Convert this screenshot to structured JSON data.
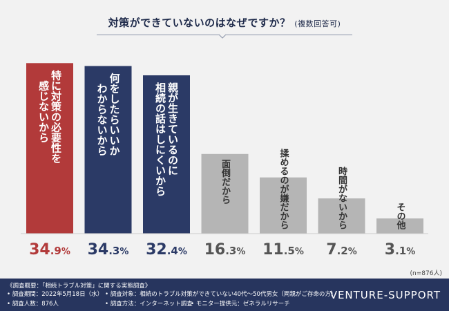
{
  "title": {
    "main": "対策ができていないのはなぜですか？",
    "sub": "(複数回答可)"
  },
  "colors": {
    "red": "#b23a3a",
    "navy": "#2b3a66",
    "gray": "#b5b5b5",
    "background": "#f2f2f2",
    "footer": "#27355e"
  },
  "chart_data": {
    "type": "bar",
    "categories": [
      "特に対策の必要性を感じないから",
      "何をしたらいいかわからないから",
      "親が生きているのに相続の話はしにくいから",
      "面倒だから",
      "揉めるのが嫌だから",
      "時間がないから",
      "その他"
    ],
    "category_lines": [
      [
        "特に対策の必要性を",
        "感じないから"
      ],
      [
        "何をしたらいいか",
        "わからないから"
      ],
      [
        "親が生きているのに",
        "相続の話はしにくいから"
      ],
      [
        "面倒だから"
      ],
      [
        "揉めるのが嫌だから"
      ],
      [
        "時間がないから"
      ],
      [
        "その他"
      ]
    ],
    "values": [
      34.9,
      34.3,
      32.4,
      16.3,
      11.5,
      7.2,
      3.1
    ],
    "value_labels": [
      {
        "int": "34",
        "dec": ".9",
        "unit": "%"
      },
      {
        "int": "34",
        "dec": ".3",
        "unit": "%"
      },
      {
        "int": "32",
        "dec": ".4",
        "unit": "%"
      },
      {
        "int": "16",
        "dec": ".3",
        "unit": "%"
      },
      {
        "int": "11",
        "dec": ".5",
        "unit": "%"
      },
      {
        "int": "7",
        "dec": ".2",
        "unit": "%"
      },
      {
        "int": "3",
        "dec": ".1",
        "unit": "%"
      }
    ],
    "bar_colors": [
      "#b23a3a",
      "#2b3a66",
      "#2b3a66",
      "#b5b5b5",
      "#b5b5b5",
      "#b5b5b5",
      "#b5b5b5"
    ],
    "value_colors": [
      "#b23a3a",
      "#2b3a66",
      "#2b3a66",
      "#555555",
      "#555555",
      "#555555",
      "#555555"
    ],
    "ylim": [
      0,
      36.5
    ],
    "grid": false,
    "note": "(n=876人)"
  },
  "footer": {
    "heading": "《調査概要：「相続トラブル対策」に関する実態調査》",
    "items": [
      "• 調査期間：2022年5月18日（水）",
      "• 調査対象：相続のトラブル対策ができていない40代～50代男女（両親がご存命の方）",
      "• 調査人数：876人",
      "• 調査方法：インターネット調査",
      "• モニター提供元：ゼネラルリサーチ"
    ],
    "brand": "VENTURE-SUPPORT"
  }
}
